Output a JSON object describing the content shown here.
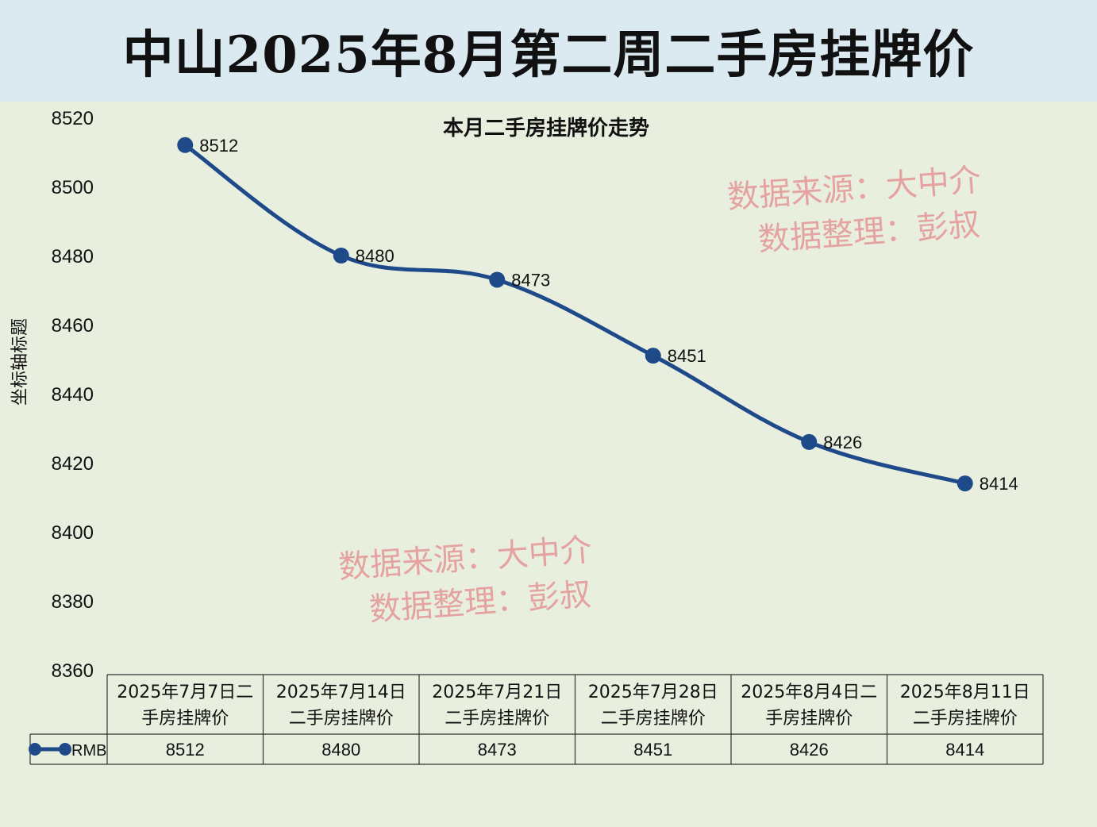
{
  "title": "中山2025年8月第二周二手房挂牌价",
  "watermark": {
    "line1": "数据来源：大中介",
    "line2": "数据整理：彭叔"
  },
  "colors": {
    "series": "#1f4a8a",
    "title_band": "#dbe9f1",
    "background": "#e9efdf",
    "watermark": "#e49a9a"
  },
  "chart_data": {
    "type": "line",
    "title": "本月二手房挂牌价走势",
    "ylabel": "坐标轴标题",
    "xlabel": "",
    "ylim": [
      8360,
      8520
    ],
    "yticks": [
      8520,
      8500,
      8480,
      8460,
      8440,
      8420,
      8400,
      8380,
      8360
    ],
    "categories": [
      "2025年7月7日二手房挂牌价",
      "2025年7月14日二手房挂牌价",
      "2025年7月21日二手房挂牌价",
      "2025年7月28日二手房挂牌价",
      "2025年8月4日二手房挂牌价",
      "2025年8月11日二手房挂牌价"
    ],
    "category_lines": [
      [
        "2025年7月7日二",
        "手房挂牌价"
      ],
      [
        "2025年7月14日",
        "二手房挂牌价"
      ],
      [
        "2025年7月21日",
        "二手房挂牌价"
      ],
      [
        "2025年7月28日",
        "二手房挂牌价"
      ],
      [
        "2025年8月4日二",
        "手房挂牌价"
      ],
      [
        "2025年8月11日",
        "二手房挂牌价"
      ]
    ],
    "series": [
      {
        "name": "RMB",
        "values": [
          8512,
          8480,
          8473,
          8451,
          8426,
          8414
        ]
      }
    ],
    "data_labels": true,
    "data_table": true,
    "grid": false,
    "smooth": true
  }
}
